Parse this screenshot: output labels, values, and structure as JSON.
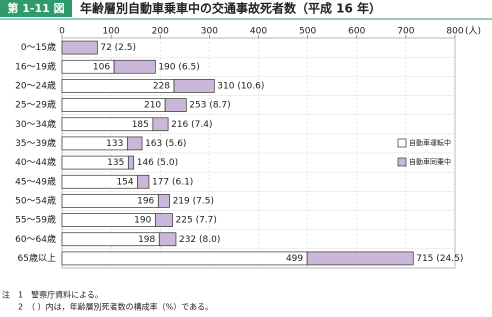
{
  "chart_data": {
    "type": "barh",
    "stacked": true,
    "figure_label": "第 1-11 図",
    "title": "年齢層別自動車乗車中の交通事故死者数（平成 16 年）",
    "x_unit": "(人)",
    "categories": [
      "0〜15歳",
      "16〜19歳",
      "20〜24歳",
      "25〜29歳",
      "30〜34歳",
      "35〜39歳",
      "40〜44歳",
      "45〜49歳",
      "50〜54歳",
      "55〜59歳",
      "60〜64歳",
      "65歳以上"
    ],
    "series": [
      {
        "name": "自動車運転中",
        "color": "#ffffff",
        "values": [
          null,
          106,
          228,
          210,
          185,
          133,
          135,
          154,
          196,
          190,
          198,
          499
        ]
      },
      {
        "name": "自動車同乗中",
        "color": "#cbb8d9",
        "values": [
          72,
          84,
          82,
          43,
          31,
          30,
          11,
          23,
          23,
          35,
          34,
          216
        ]
      }
    ],
    "total_labels": [
      "72 (2.5)",
      "190 (6.5)",
      "310 (10.6)",
      "253 (8.7)",
      "216 (7.4)",
      "163 (5.6)",
      "146 (5.0)",
      "177 (6.1)",
      "219 (7.5)",
      "225 (7.7)",
      "232 (8.0)",
      "715 (24.5)"
    ],
    "xlim": [
      0,
      800
    ],
    "xticks": [
      0,
      100,
      200,
      300,
      400,
      500,
      600,
      700,
      800
    ],
    "grid": true,
    "notes": [
      "注　1　警察庁資料による。",
      "　　2　（ ）内は，年齢層別死者数の構成率（%）である。"
    ]
  }
}
